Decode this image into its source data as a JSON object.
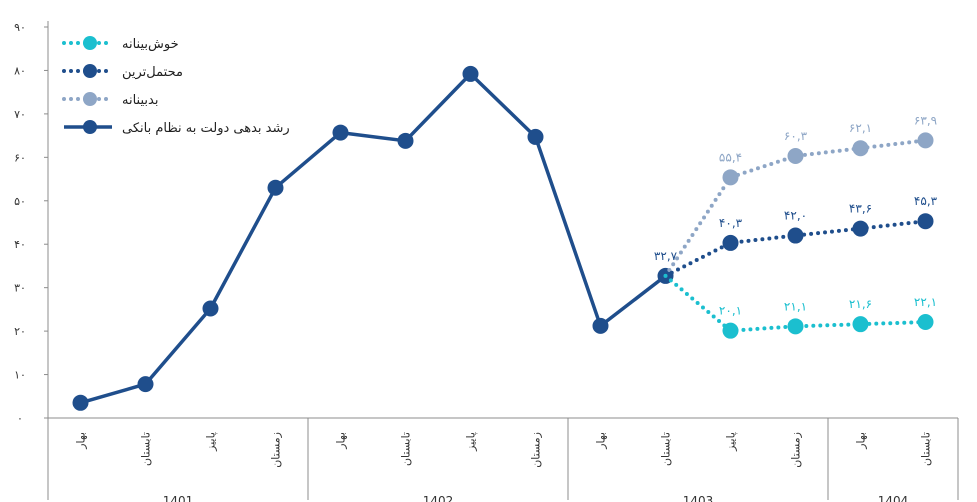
{
  "chart_data": {
    "type": "line",
    "ylim": [
      0,
      90
    ],
    "y_ticks": [
      "۰",
      "۱۰",
      "۲۰",
      "۳۰",
      "۴۰",
      "۵۰",
      "۶۰",
      "۷۰",
      "۸۰",
      "۹۰"
    ],
    "grid": false,
    "legend_position": "top-left",
    "categories": [
      "بهار",
      "تابستان",
      "پاییز",
      "زمستان",
      "بهار",
      "تابستان",
      "پاییز",
      "زمستان",
      "بهار",
      "تابستان",
      "پاییز",
      "زمستان",
      "بهار",
      "تابستان"
    ],
    "year_groups": [
      {
        "label": "1401",
        "start": 0,
        "end": 3
      },
      {
        "label": "1402",
        "start": 4,
        "end": 7
      },
      {
        "label": "1403",
        "start": 8,
        "end": 11
      },
      {
        "label": "1404",
        "start": 12,
        "end": 13
      }
    ],
    "series": [
      {
        "name": "رشد بدهی دولت به نظام بانکی",
        "color": "#1F4E8C",
        "style": "solid",
        "values": [
          3.5,
          7.8,
          25.2,
          53.0,
          65.7,
          63.8,
          79.2,
          64.7,
          21.2,
          32.7,
          null,
          null,
          null,
          null
        ],
        "labels": [
          null,
          null,
          null,
          null,
          null,
          null,
          null,
          null,
          null,
          "۳۲,۷",
          null,
          null,
          null,
          null
        ]
      },
      {
        "name": "بدبینانه",
        "color": "#8EA6C6",
        "style": "dotted",
        "values": [
          null,
          null,
          null,
          null,
          null,
          null,
          null,
          null,
          null,
          32.7,
          55.4,
          60.3,
          62.1,
          63.9
        ],
        "labels": [
          null,
          null,
          null,
          null,
          null,
          null,
          null,
          null,
          null,
          null,
          "۵۵,۴",
          "۶۰,۳",
          "۶۲,۱",
          "۶۳,۹"
        ]
      },
      {
        "name": "محتمل‌ترین",
        "color": "#1F4E8C",
        "style": "dotted",
        "values": [
          null,
          null,
          null,
          null,
          null,
          null,
          null,
          null,
          null,
          32.7,
          40.3,
          42.0,
          43.6,
          45.3
        ],
        "labels": [
          null,
          null,
          null,
          null,
          null,
          null,
          null,
          null,
          null,
          null,
          "۴۰,۳",
          "۴۲,۰",
          "۴۳,۶",
          "۴۵,۳"
        ]
      },
      {
        "name": "خوش‌بینانه",
        "color": "#1BBFCF",
        "style": "dotted",
        "values": [
          null,
          null,
          null,
          null,
          null,
          null,
          null,
          null,
          null,
          32.7,
          20.1,
          21.1,
          21.6,
          22.1
        ],
        "labels": [
          null,
          null,
          null,
          null,
          null,
          null,
          null,
          null,
          null,
          null,
          "۲۰,۱",
          "۲۱,۱",
          "۲۱,۶",
          "۲۲,۱"
        ]
      }
    ],
    "legend": [
      {
        "label": "خوش‌بینانه",
        "color": "#1BBFCF",
        "style": "dotted"
      },
      {
        "label": "محتمل‌ترین",
        "color": "#1F4E8C",
        "style": "dotted"
      },
      {
        "label": "بدبینانه",
        "color": "#8EA6C6",
        "style": "dotted"
      },
      {
        "label": "رشد بدهی دولت به نظام بانکی",
        "color": "#1F4E8C",
        "style": "solid"
      }
    ]
  }
}
